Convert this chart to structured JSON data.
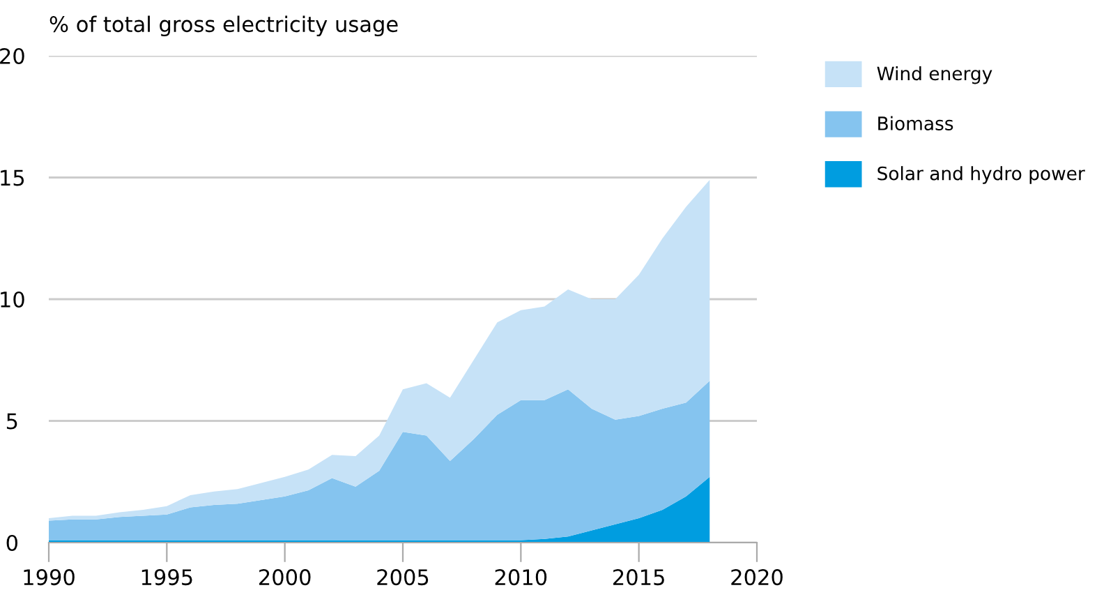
{
  "chart_data": {
    "type": "area",
    "stacked": true,
    "ylabel": "% of total gross electricity usage",
    "x": [
      1990,
      1991,
      1992,
      1993,
      1994,
      1995,
      1996,
      1997,
      1998,
      1999,
      2000,
      2001,
      2002,
      2003,
      2004,
      2005,
      2006,
      2007,
      2008,
      2009,
      2010,
      2011,
      2012,
      2013,
      2014,
      2015,
      2016,
      2017,
      2018
    ],
    "series": [
      {
        "name": "Solar and hydro power",
        "color": "#009de0",
        "values": [
          0.1,
          0.1,
          0.1,
          0.1,
          0.1,
          0.1,
          0.1,
          0.1,
          0.1,
          0.1,
          0.1,
          0.1,
          0.1,
          0.1,
          0.1,
          0.1,
          0.1,
          0.1,
          0.1,
          0.1,
          0.1,
          0.15,
          0.25,
          0.5,
          0.75,
          1.0,
          1.35,
          1.9,
          2.7
        ]
      },
      {
        "name": "Biomass",
        "color": "#85c4ef",
        "values": [
          0.8,
          0.85,
          0.85,
          0.95,
          1.0,
          1.05,
          1.35,
          1.45,
          1.5,
          1.65,
          1.8,
          2.05,
          2.55,
          2.2,
          2.85,
          4.45,
          4.3,
          3.25,
          4.15,
          5.15,
          5.75,
          5.7,
          6.05,
          5.0,
          4.3,
          4.2,
          4.15,
          3.85,
          3.95
        ]
      },
      {
        "name": "Wind energy",
        "color": "#c6e2f7",
        "values": [
          0.1,
          0.15,
          0.15,
          0.2,
          0.25,
          0.35,
          0.5,
          0.55,
          0.6,
          0.7,
          0.8,
          0.85,
          0.95,
          1.25,
          1.45,
          1.75,
          2.15,
          2.6,
          3.25,
          3.8,
          3.7,
          3.85,
          4.1,
          4.5,
          4.95,
          5.8,
          7.0,
          8.05,
          8.25
        ]
      }
    ],
    "xlim": [
      1990,
      2020
    ],
    "xticks": [
      1990,
      1995,
      2000,
      2005,
      2010,
      2015,
      2020
    ],
    "ylim": [
      0,
      20
    ],
    "yticks": [
      0,
      5,
      10,
      15,
      20
    ],
    "grid": "y",
    "legend": "right"
  }
}
